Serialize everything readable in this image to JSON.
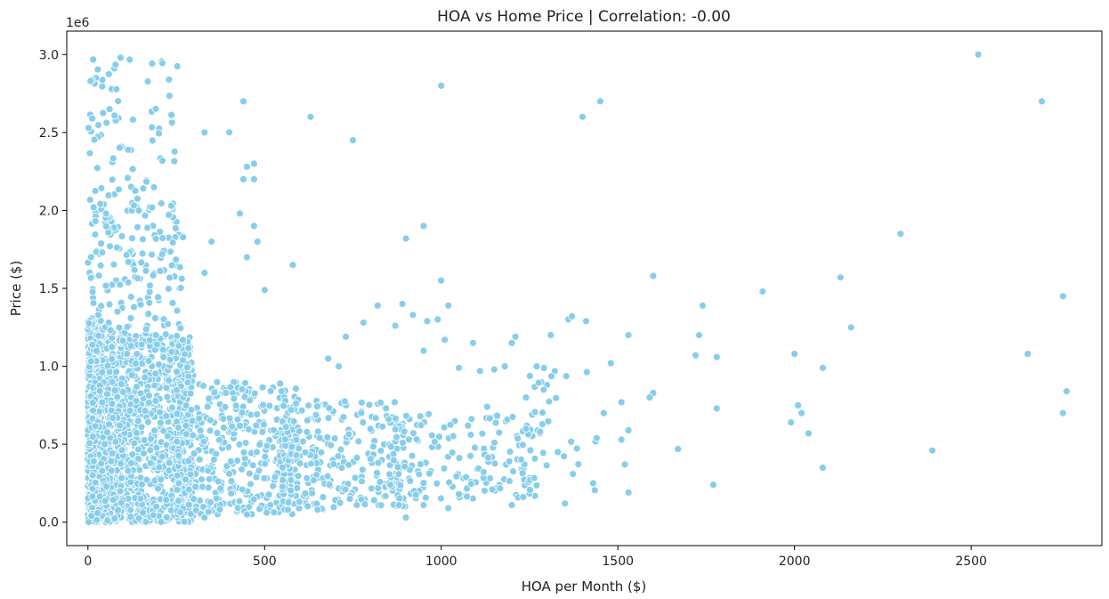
{
  "chart_data": {
    "type": "scatter",
    "title": "HOA vs Home Price | Correlation: -0.00",
    "xlabel": "HOA per Month ($)",
    "ylabel": "Price ($)",
    "y_offset_label": "1e6",
    "xlim": [
      -60,
      2870
    ],
    "ylim": [
      -150000,
      3150000
    ],
    "x_ticks": [
      0,
      500,
      1000,
      1500,
      2000,
      2500
    ],
    "x_tick_labels": [
      "0",
      "500",
      "1000",
      "1500",
      "2000",
      "2500"
    ],
    "y_ticks": [
      0,
      500000,
      1000000,
      1500000,
      2000000,
      2500000,
      3000000
    ],
    "y_tick_labels": [
      "0.0",
      "0.5",
      "1.0",
      "1.5",
      "2.0",
      "2.5",
      "3.0"
    ],
    "grid": false,
    "marker_color": "#87CEEB",
    "marker_edge_color": "#ffffff",
    "points": [
      [
        2520,
        3000000
      ],
      [
        2700,
        2700000
      ],
      [
        1450,
        2700000
      ],
      [
        1400,
        2600000
      ],
      [
        1000,
        2800000
      ],
      [
        630,
        2600000
      ],
      [
        750,
        2450000
      ],
      [
        950,
        1900000
      ],
      [
        900,
        1820000
      ],
      [
        1000,
        1550000
      ],
      [
        1600,
        1580000
      ],
      [
        1740,
        1390000
      ],
      [
        1910,
        1480000
      ],
      [
        2130,
        1570000
      ],
      [
        2300,
        1850000
      ],
      [
        2160,
        1250000
      ],
      [
        2760,
        1450000
      ],
      [
        2770,
        840000
      ],
      [
        2760,
        700000
      ],
      [
        2660,
        1080000
      ],
      [
        2390,
        460000
      ],
      [
        2080,
        350000
      ],
      [
        2080,
        990000
      ],
      [
        2000,
        1080000
      ],
      [
        2010,
        750000
      ],
      [
        2020,
        700000
      ],
      [
        1990,
        640000
      ],
      [
        2040,
        570000
      ],
      [
        1780,
        1060000
      ],
      [
        1720,
        1070000
      ],
      [
        1730,
        1200000
      ],
      [
        1780,
        730000
      ],
      [
        1770,
        240000
      ],
      [
        1670,
        470000
      ],
      [
        1600,
        830000
      ],
      [
        1590,
        800000
      ],
      [
        1530,
        1200000
      ],
      [
        1510,
        770000
      ],
      [
        1520,
        370000
      ],
      [
        1530,
        190000
      ],
      [
        1530,
        590000
      ],
      [
        1510,
        530000
      ],
      [
        1480,
        1020000
      ],
      [
        1460,
        700000
      ],
      [
        1440,
        540000
      ],
      [
        1430,
        250000
      ],
      [
        1410,
        1290000
      ],
      [
        1360,
        1300000
      ],
      [
        1370,
        1320000
      ],
      [
        1310,
        1200000
      ],
      [
        1290,
        850000
      ],
      [
        1280,
        580000
      ],
      [
        1270,
        1000000
      ],
      [
        1240,
        800000
      ],
      [
        1210,
        1190000
      ],
      [
        1200,
        1150000
      ],
      [
        1180,
        1000000
      ],
      [
        1150,
        980000
      ],
      [
        1110,
        970000
      ],
      [
        1090,
        1150000
      ],
      [
        1020,
        1390000
      ],
      [
        1010,
        1170000
      ],
      [
        990,
        1300000
      ],
      [
        960,
        1290000
      ],
      [
        950,
        1100000
      ],
      [
        920,
        1330000
      ],
      [
        890,
        1400000
      ],
      [
        870,
        1260000
      ],
      [
        820,
        1390000
      ],
      [
        780,
        1280000
      ],
      [
        730,
        1190000
      ],
      [
        710,
        1000000
      ],
      [
        680,
        1050000
      ],
      [
        580,
        1650000
      ],
      [
        500,
        1490000
      ],
      [
        480,
        1800000
      ],
      [
        470,
        1900000
      ],
      [
        470,
        2200000
      ],
      [
        470,
        2300000
      ],
      [
        450,
        2280000
      ],
      [
        440,
        2200000
      ],
      [
        430,
        1980000
      ],
      [
        450,
        1700000
      ],
      [
        400,
        2500000
      ],
      [
        330,
        2500000
      ],
      [
        440,
        2700000
      ],
      [
        350,
        1800000
      ],
      [
        330,
        1600000
      ],
      [
        1050,
        990000
      ],
      [
        1130,
        740000
      ],
      [
        1240,
        600000
      ],
      [
        1330,
        450000
      ],
      [
        1350,
        120000
      ],
      [
        1200,
        110000
      ],
      [
        1050,
        180000
      ],
      [
        1020,
        90000
      ],
      [
        900,
        30000
      ],
      [
        880,
        110000
      ],
      [
        950,
        110000
      ],
      [
        650,
        80000
      ],
      [
        450,
        50000
      ],
      [
        330,
        30000
      ]
    ],
    "clusters": [
      {
        "xs": [
          0,
          40
        ],
        "ys": [
          0,
          1300000
        ],
        "n": 500
      },
      {
        "xs": [
          0,
          300
        ],
        "ys": [
          0,
          1200000
        ],
        "n": 1100
      },
      {
        "xs": [
          0,
          270
        ],
        "ys": [
          1000000,
          2050000
        ],
        "n": 220
      },
      {
        "xs": [
          0,
          260
        ],
        "ys": [
          2000000,
          3000000
        ],
        "n": 80
      },
      {
        "xs": [
          0,
          100
        ],
        "ys": [
          0,
          900000
        ],
        "n": 300
      },
      {
        "xs": [
          250,
          600
        ],
        "ys": [
          50000,
          900000
        ],
        "n": 420
      },
      {
        "xs": [
          550,
          900
        ],
        "ys": [
          80000,
          780000
        ],
        "n": 260
      },
      {
        "xs": [
          850,
          1270
        ],
        "ys": [
          150000,
          700000
        ],
        "n": 160
      },
      {
        "xs": [
          1250,
          1450
        ],
        "ys": [
          200000,
          1000000
        ],
        "n": 30
      }
    ]
  }
}
